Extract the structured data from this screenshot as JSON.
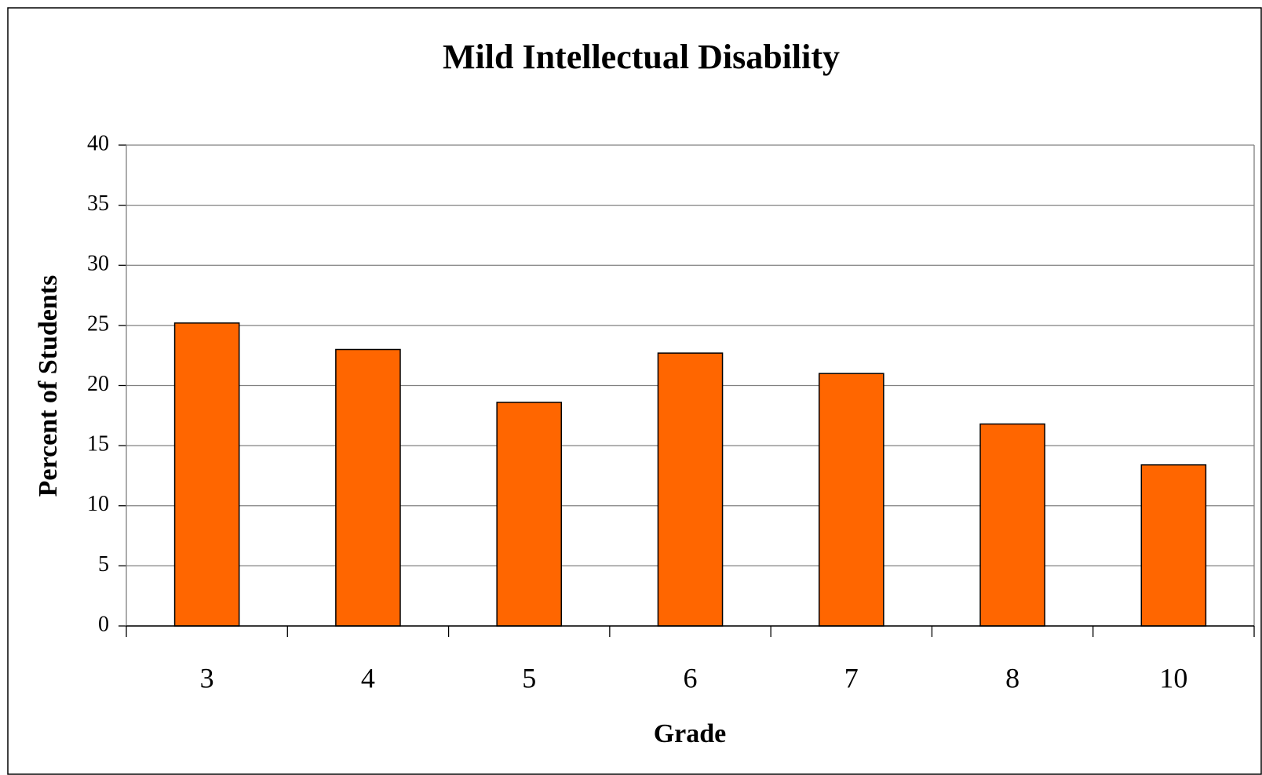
{
  "chart_data": {
    "type": "bar",
    "title": "Mild Intellectual Disability",
    "x_label": "Grade",
    "y_label": "Percent of Students",
    "categories": [
      "3",
      "4",
      "5",
      "6",
      "7",
      "8",
      "10"
    ],
    "values": [
      25.2,
      23.0,
      18.6,
      22.7,
      21.0,
      16.8,
      13.4
    ],
    "color": "#ff6600",
    "ylim": [
      0,
      40
    ],
    "yticks": [
      0,
      5,
      10,
      15,
      20,
      25,
      30,
      35,
      40
    ],
    "grid": true
  }
}
